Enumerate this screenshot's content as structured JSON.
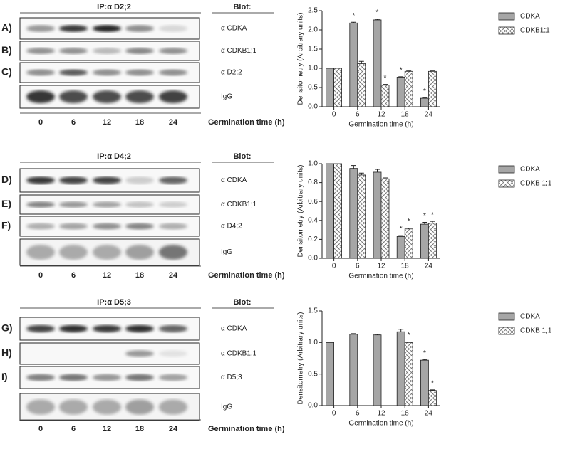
{
  "blots": [
    {
      "title": "IP:α D2;2",
      "blot_heading": "Blot:",
      "rows": [
        {
          "panel": "A)",
          "antibody": "α CDKA"
        },
        {
          "panel": "B)",
          "antibody": "α CDKB1;1"
        },
        {
          "panel": "C)",
          "antibody": "α D2;2"
        },
        {
          "antibody": "IgG"
        }
      ],
      "times": [
        "0",
        "6",
        "12",
        "18",
        "24"
      ],
      "x_title": "Germination time (h)"
    },
    {
      "title": "IP:α D4;2",
      "blot_heading": "Blot:",
      "rows": [
        {
          "panel": "D)",
          "antibody": "α CDKA"
        },
        {
          "panel": "E)",
          "antibody": "α CDKB1;1"
        },
        {
          "panel": "F)",
          "antibody": "α D4;2"
        },
        {
          "antibody": "IgG"
        }
      ],
      "times": [
        "0",
        "6",
        "12",
        "18",
        "24"
      ],
      "x_title": "Germination time (h)"
    },
    {
      "title": "IP:α D5;3",
      "blot_heading": "Blot:",
      "rows": [
        {
          "panel": "G)",
          "antibody": "α CDKA"
        },
        {
          "panel": "H)",
          "antibody": "α CDKB1;1"
        },
        {
          "panel": "I)",
          "antibody": "α D5;3"
        },
        {
          "antibody": "IgG"
        }
      ],
      "times": [
        "0",
        "6",
        "12",
        "18",
        "24"
      ],
      "x_title": "Germination time (h)"
    }
  ],
  "chart_data": [
    {
      "type": "bar",
      "xlabel": "Germination time (h)",
      "ylabel": "Densitometry (Arbitrary units)",
      "categories": [
        "0",
        "6",
        "12",
        "18",
        "24"
      ],
      "series": [
        {
          "name": "CDKA",
          "color": "#a6a6a6",
          "values": [
            1.0,
            2.18,
            2.26,
            0.77,
            0.22
          ],
          "errors": [
            0,
            0.02,
            0.02,
            0.01,
            0.01
          ]
        },
        {
          "name": "CDKB1;1",
          "color": "#ffffff",
          "hatch": true,
          "values": [
            1.0,
            1.12,
            0.56,
            0.92,
            0.92
          ],
          "errors": [
            0,
            0.06,
            0.02,
            0.01,
            0.01
          ]
        }
      ],
      "annotations": [
        {
          "text": "*",
          "series": "CDKA",
          "category": "6"
        },
        {
          "text": "*",
          "series": "CDKA",
          "category": "12"
        },
        {
          "text": "*",
          "series": "CDKB1;1",
          "category": "12"
        },
        {
          "text": "*",
          "series": "CDKA",
          "category": "18"
        },
        {
          "text": "*",
          "series": "CDKA",
          "category": "24"
        }
      ],
      "ylim": [
        0,
        2.5
      ],
      "yticks": [
        {
          "value": 0,
          "label": "0.0"
        },
        0.5,
        {
          "value": 1,
          "label": "1.0"
        },
        1.5,
        {
          "value": 2,
          "label": "2.0"
        },
        2.5
      ]
    },
    {
      "type": "bar",
      "xlabel": "Germination time (h)",
      "ylabel": "Densitometry (Arbitrary units)",
      "categories": [
        "0",
        "6",
        "12",
        "18",
        "24"
      ],
      "series": [
        {
          "name": "CDKA",
          "color": "#a6a6a6",
          "values": [
            1.0,
            0.95,
            0.91,
            0.23,
            0.36
          ],
          "errors": [
            0,
            0.03,
            0.03,
            0.01,
            0.02
          ]
        },
        {
          "name": "CDKB 1;1",
          "color": "#ffffff",
          "hatch": true,
          "values": [
            1.0,
            0.88,
            0.84,
            0.31,
            0.37
          ],
          "errors": [
            0,
            0.02,
            0.01,
            0.01,
            0.02
          ]
        }
      ],
      "annotations": [
        {
          "text": "*",
          "series": "CDKA",
          "category": "18"
        },
        {
          "text": "*",
          "series": "CDKB 1;1",
          "category": "18"
        },
        {
          "text": "*",
          "series": "CDKA",
          "category": "24"
        },
        {
          "text": "*",
          "series": "CDKB 1;1",
          "category": "24"
        }
      ],
      "ylim": [
        0,
        1
      ],
      "yticks": [
        {
          "value": 0,
          "label": "0.0"
        },
        0.2,
        0.4,
        0.6,
        0.8,
        {
          "value": 1,
          "label": "1.0"
        }
      ]
    },
    {
      "type": "bar",
      "xlabel": "Germination time (h)",
      "ylabel": "Densitometry (Arbitrary units)",
      "categories": [
        "0",
        "6",
        "12",
        "18",
        "24"
      ],
      "series": [
        {
          "name": "CDKA",
          "color": "#a6a6a6",
          "values": [
            1.0,
            1.13,
            1.12,
            1.17,
            0.72
          ],
          "errors": [
            0,
            0.01,
            0.01,
            0.04,
            0.01
          ]
        },
        {
          "name": "CDKB 1;1",
          "color": "#ffffff",
          "hatch": true,
          "values": [
            null,
            null,
            null,
            1.0,
            0.24
          ],
          "errors": [
            null,
            null,
            null,
            0.01,
            0.01
          ]
        }
      ],
      "annotations": [
        {
          "text": "*",
          "series": "CDKB 1;1",
          "category": "18"
        },
        {
          "text": "*",
          "series": "CDKA",
          "category": "24"
        },
        {
          "text": "*",
          "series": "CDKB 1;1",
          "category": "24"
        }
      ],
      "ylim": [
        0,
        1.5
      ],
      "yticks": [
        {
          "value": 0,
          "label": "0.0"
        },
        0.5,
        {
          "value": 1,
          "label": "1.0"
        },
        1.5
      ]
    }
  ]
}
